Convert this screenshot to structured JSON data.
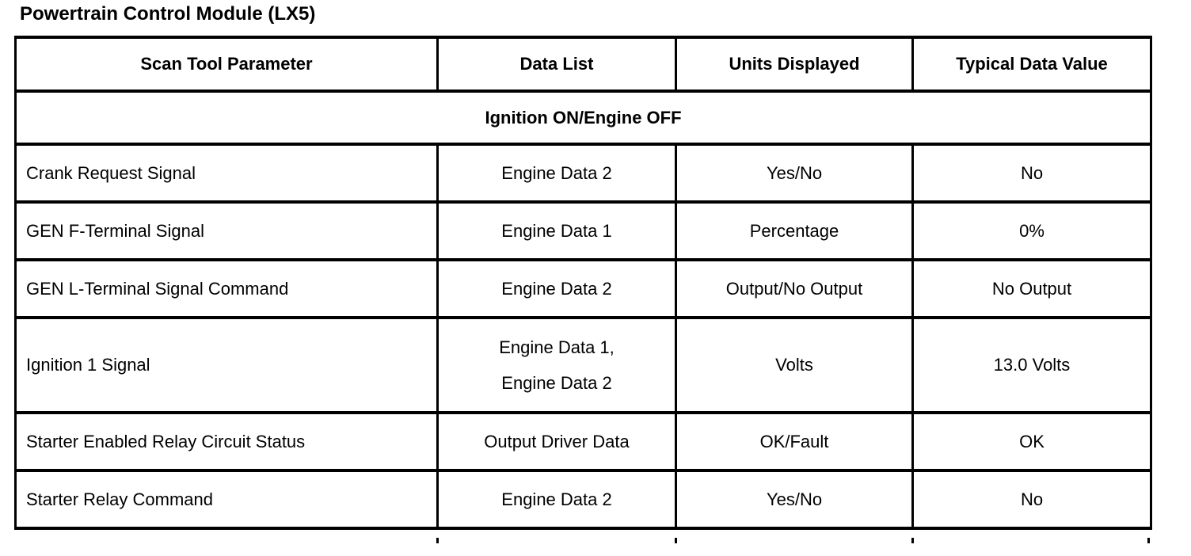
{
  "page": {
    "title": "Powertrain Control Module (LX5)"
  },
  "table": {
    "columns": [
      "Scan Tool Parameter",
      "Data List",
      "Units Displayed",
      "Typical Data Value"
    ],
    "section_header": "Ignition ON/Engine OFF",
    "rows": [
      {
        "parameter": "Crank Request Signal",
        "data_list": "Engine Data 2",
        "units": "Yes/No",
        "value": "No"
      },
      {
        "parameter": "GEN F-Terminal Signal",
        "data_list": "Engine Data 1",
        "units": "Percentage",
        "value": "0%"
      },
      {
        "parameter": "GEN L-Terminal Signal Command",
        "data_list": "Engine Data 2",
        "units": "Output/No Output",
        "value": "No Output"
      },
      {
        "parameter": "Ignition 1 Signal",
        "data_list": "Engine Data 1,\nEngine Data 2",
        "units": "Volts",
        "value": "13.0 Volts"
      },
      {
        "parameter": "Starter Enabled Relay Circuit Status",
        "data_list": "Output Driver Data",
        "units": "OK/Fault",
        "value": "OK"
      },
      {
        "parameter": "Starter Relay Command",
        "data_list": "Engine Data 2",
        "units": "Yes/No",
        "value": "No"
      }
    ]
  }
}
